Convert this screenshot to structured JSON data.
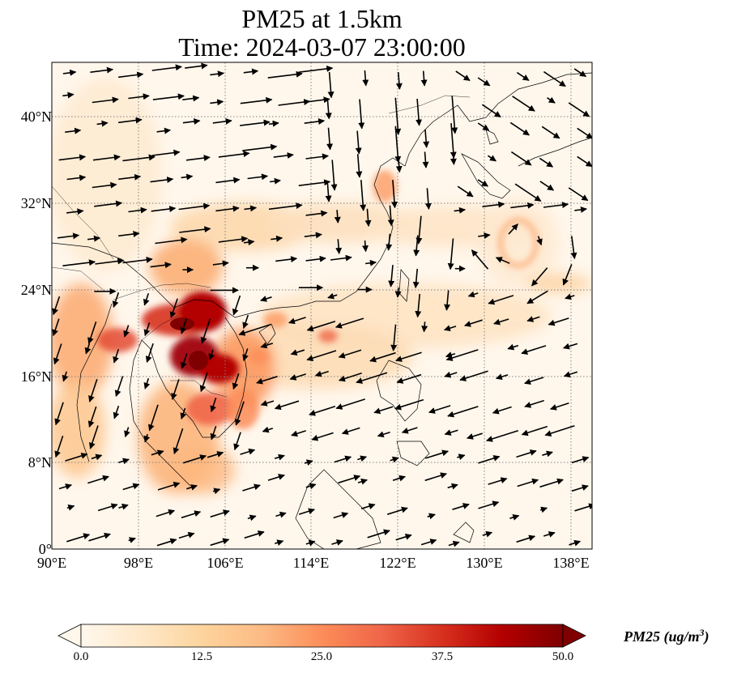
{
  "title": {
    "line1": "PM25 at 1.5km",
    "line2": "Time: 2024-03-07 23:00:00"
  },
  "map": {
    "projection": "PlateCarree",
    "extent": {
      "lon_min": 90,
      "lon_max": 139.5,
      "lat_min": 0,
      "lat_max": 45
    },
    "gridlines": {
      "style": "dotted",
      "color": "#808080"
    },
    "lat_labels": [
      "0°",
      "8°N",
      "16°N",
      "24°N",
      "32°N",
      "40°N"
    ],
    "lon_labels": [
      "90°E",
      "98°E",
      "106°E",
      "114°E",
      "122°E",
      "130°E",
      "138°E"
    ],
    "field": "PM25",
    "overlay": "wind vectors (black arrows)"
  },
  "colorbar": {
    "cmap": "OrRd",
    "min": 0,
    "max": 50,
    "extend": "both",
    "tick_labels": [
      "0.0",
      "12.5",
      "25.0",
      "37.5",
      "50.0"
    ],
    "label_main": "PM25 (ug/m",
    "label_sup": "3",
    "label_end": ")"
  },
  "colors": {
    "background_low": "#fff7ec",
    "mid_low": "#fdd49e",
    "mid": "#fc8d59",
    "high": "#d7301f",
    "extreme": "#7f0000"
  }
}
